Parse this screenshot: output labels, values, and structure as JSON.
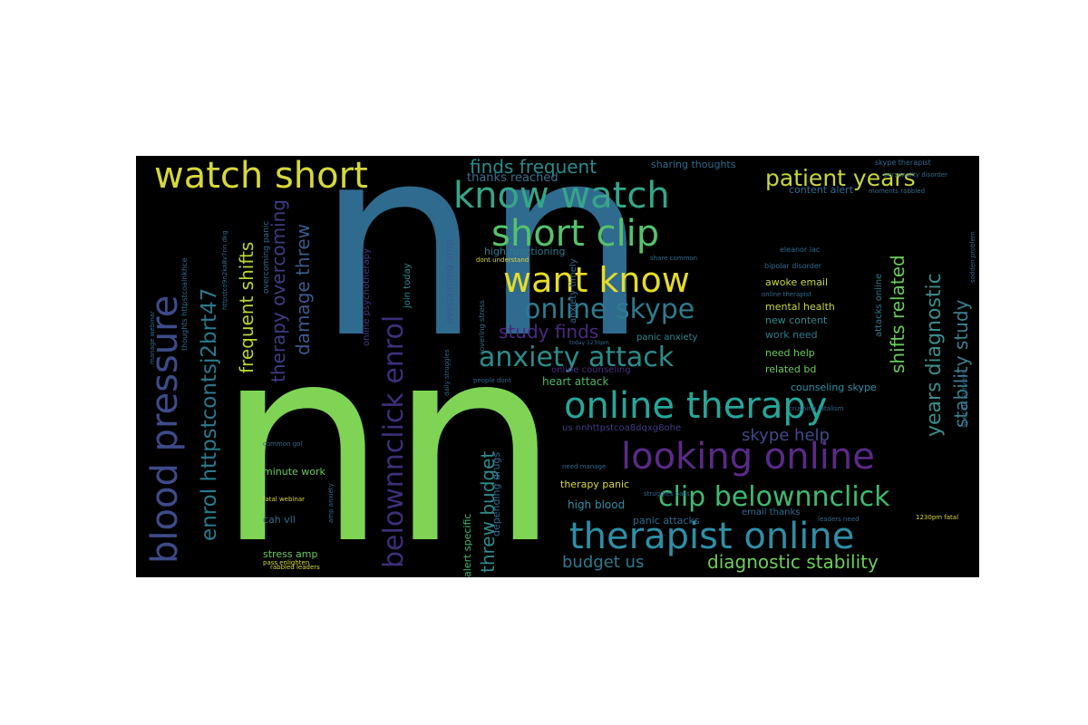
{
  "wordcloud": {
    "background": "#000000",
    "words": [
      {
        "text": "nn",
        "color": "#2f6b8e"
      },
      {
        "text": "nn",
        "color": "#7fd455"
      },
      {
        "text": "watch short",
        "color": "#d6d83a"
      },
      {
        "text": "know watch",
        "color": "#36a58a"
      },
      {
        "text": "short clip",
        "color": "#56c26b"
      },
      {
        "text": "want know",
        "color": "#e5dc2a"
      },
      {
        "text": "online skype",
        "color": "#2e7a8f"
      },
      {
        "text": "anxiety attack",
        "color": "#2b8c8a"
      },
      {
        "text": "online therapy",
        "color": "#26a69a"
      },
      {
        "text": "looking online",
        "color": "#5a2a87"
      },
      {
        "text": "therapist online",
        "color": "#2f8ea6"
      },
      {
        "text": "clip belownnclick",
        "color": "#40b971"
      },
      {
        "text": "diagnostic stability",
        "color": "#6fcc5c"
      },
      {
        "text": "patient years",
        "color": "#c8d63a"
      },
      {
        "text": "finds frequent",
        "color": "#2b8a8c"
      },
      {
        "text": "blood pressure",
        "color": "#3e4b8a"
      },
      {
        "text": "enrol httpstcontsj2brt47",
        "color": "#2a7a8c"
      },
      {
        "text": "frequent shifts",
        "color": "#b5d43a"
      },
      {
        "text": "therapy overcoming",
        "color": "#3f3c83"
      },
      {
        "text": "damage threw",
        "color": "#3a5a8c"
      },
      {
        "text": "belownnclick enrol",
        "color": "#3e2f7a"
      },
      {
        "text": "years diagnostic",
        "color": "#3b8c8c"
      },
      {
        "text": "shifts related",
        "color": "#6acb5c"
      },
      {
        "text": "stability study",
        "color": "#3d7f8e"
      },
      {
        "text": "threw budget",
        "color": "#2f8a8c"
      },
      {
        "text": "study finds",
        "color": "#4a2a80"
      },
      {
        "text": "skype help",
        "color": "#3f4a8a"
      },
      {
        "text": "budget us",
        "color": "#2f7a8c"
      },
      {
        "text": "sharing thoughts",
        "color": "#2f6b8e"
      },
      {
        "text": "thanks reached",
        "color": "#3b6f8e"
      },
      {
        "text": "content alert",
        "color": "#2f6b8e"
      },
      {
        "text": "high functioning",
        "color": "#2f7a8c"
      },
      {
        "text": "join today",
        "color": "#2f8a8c"
      },
      {
        "text": "overcoming amp",
        "color": "#3a5a8c"
      },
      {
        "text": "online psychotherapy",
        "color": "#3f3c83"
      },
      {
        "text": "anxiety timely",
        "color": "#2f6b8e"
      },
      {
        "text": "heart attack",
        "color": "#48b86a"
      },
      {
        "text": "online counseling",
        "color": "#4a2a80"
      },
      {
        "text": "panic anxiety",
        "color": "#2f8a8c"
      },
      {
        "text": "awoke email",
        "color": "#c8d63a"
      },
      {
        "text": "mental health",
        "color": "#c8d63a"
      },
      {
        "text": "new content",
        "color": "#2f8a8c"
      },
      {
        "text": "work need",
        "color": "#2f7a8c"
      },
      {
        "text": "need help",
        "color": "#6acb5c"
      },
      {
        "text": "related bd",
        "color": "#6acb5c"
      },
      {
        "text": "counseling skype",
        "color": "#2f8ea6"
      },
      {
        "text": "attacks online",
        "color": "#2f7a8c"
      },
      {
        "text": "eleanor lac",
        "color": "#2f6b8e"
      },
      {
        "text": "bipolar disorder",
        "color": "#2f6b8e"
      },
      {
        "text": "online therapist",
        "color": "#2f6b8e"
      },
      {
        "text": "therapy panic",
        "color": "#d6d83a"
      },
      {
        "text": "high blood",
        "color": "#2f8ea6"
      },
      {
        "text": "panic attacks",
        "color": "#2f6b8e"
      },
      {
        "text": "email thanks",
        "color": "#2f6b8e"
      },
      {
        "text": "alert specific",
        "color": "#40b971"
      },
      {
        "text": "depending drugs",
        "color": "#2f6b8e"
      },
      {
        "text": "minute work",
        "color": "#6acb5c"
      },
      {
        "text": "stress amp",
        "color": "#6acb5c"
      },
      {
        "text": "cah vll",
        "color": "#2f6b8e"
      },
      {
        "text": "overcoming panic",
        "color": "#2f6b8e"
      },
      {
        "text": "people dont",
        "color": "#2f6b8e"
      },
      {
        "text": "today 1230pm",
        "color": "#2f6b8e"
      },
      {
        "text": "daily struggles",
        "color": "#2f6b8e"
      },
      {
        "text": "covering stress",
        "color": "#2f6b8e"
      },
      {
        "text": "us nnhttpstcoa8dqxg8ohe",
        "color": "#3f3c83"
      },
      {
        "text": "common gol",
        "color": "#2f6b8e"
      },
      {
        "text": "fatal webinar",
        "color": "#d6d83a"
      },
      {
        "text": "rabbled leaders",
        "color": "#d6d83a"
      },
      {
        "text": "1230pm fatal",
        "color": "#d6d83a"
      },
      {
        "text": "leaders need",
        "color": "#2f6b8e"
      },
      {
        "text": "specific surveys",
        "color": "#2f6b8e"
      },
      {
        "text": "skype therapist",
        "color": "#2f6b8e"
      },
      {
        "text": "personality disorder",
        "color": "#2f6b8e"
      },
      {
        "text": "moments rabbled",
        "color": "#2f6b8e"
      },
      {
        "text": "dont understand",
        "color": "#d6d83a"
      },
      {
        "text": "struggles pass",
        "color": "#2f6b8e"
      },
      {
        "text": "need manage",
        "color": "#2f6b8e"
      },
      {
        "text": "share common",
        "color": "#2f6b8e"
      },
      {
        "text": "pass enlighten",
        "color": "#d6d83a"
      },
      {
        "text": "amp anxiety",
        "color": "#2f6b8e"
      },
      {
        "text": "thoughts httpstcoalnkhce",
        "color": "#2f6b8e"
      },
      {
        "text": "httpstco9n2ka8v7nn dkg",
        "color": "#2f6b8e"
      },
      {
        "text": "manage webinar",
        "color": "#2f6b8e"
      },
      {
        "text": "sodden problem",
        "color": "#2f6b8e"
      },
      {
        "text": "crushing fatalism",
        "color": "#2f6b8e"
      }
    ]
  }
}
